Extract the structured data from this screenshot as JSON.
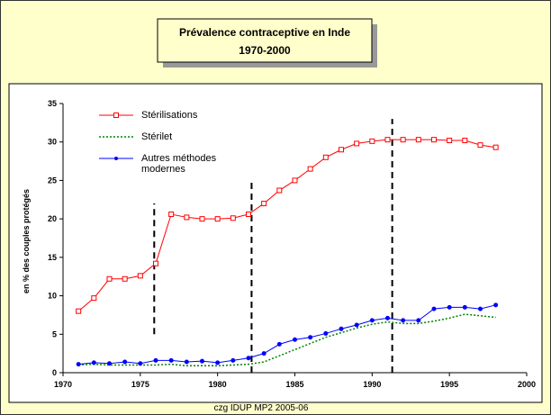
{
  "chart_data": {
    "type": "line",
    "title": "Prévalence contraceptive en Inde",
    "subtitle": "1970-2000",
    "y_label": "en % des couples protégés",
    "footer": "czg IDUP MP2 2005-06",
    "x": [
      1971,
      1972,
      1973,
      1974,
      1975,
      1976,
      1977,
      1978,
      1979,
      1980,
      1981,
      1982,
      1983,
      1984,
      1985,
      1986,
      1987,
      1988,
      1989,
      1990,
      1991,
      1992,
      1993,
      1994,
      1995,
      1996,
      1997,
      1998
    ],
    "series": [
      {
        "name": "Stérilisations",
        "color": "#ff0000",
        "style": "square",
        "values": [
          8.0,
          9.7,
          12.2,
          12.2,
          12.6,
          14.2,
          20.6,
          20.2,
          20.0,
          20.0,
          20.1,
          20.6,
          22.0,
          23.7,
          25.0,
          26.5,
          28.0,
          29.0,
          29.8,
          30.1,
          30.3,
          30.3,
          30.3,
          30.3,
          30.2,
          30.2,
          29.6,
          29.3
        ]
      },
      {
        "name": "Stérilet",
        "color": "#008000",
        "style": "dotted",
        "values": [
          1.0,
          1.1,
          1.0,
          1.0,
          1.0,
          1.0,
          1.1,
          0.9,
          0.9,
          0.9,
          1.0,
          1.1,
          1.4,
          2.2,
          3.0,
          3.8,
          4.6,
          5.2,
          5.8,
          6.3,
          6.6,
          6.4,
          6.4,
          6.7,
          7.1,
          7.6,
          7.4,
          7.2
        ]
      },
      {
        "name": "Autres méthodes modernes",
        "color": "#0000ff",
        "style": "dot",
        "values": [
          1.1,
          1.3,
          1.2,
          1.4,
          1.2,
          1.6,
          1.6,
          1.4,
          1.5,
          1.3,
          1.6,
          1.9,
          2.5,
          3.7,
          4.3,
          4.6,
          5.1,
          5.7,
          6.2,
          6.8,
          7.1,
          6.8,
          6.8,
          8.3,
          8.5,
          8.5,
          8.3,
          8.8
        ]
      }
    ],
    "vlines": [
      {
        "x": 1975.9,
        "y": [
          5,
          22
        ]
      },
      {
        "x": 1982.2,
        "y": [
          0,
          25
        ]
      },
      {
        "x": 1991.3,
        "y": [
          0,
          33
        ]
      }
    ],
    "xlim": [
      1970,
      2000
    ],
    "xticks": [
      1970,
      1975,
      1980,
      1985,
      1990,
      1995,
      2000
    ],
    "ylim": [
      0,
      35
    ],
    "yticks": [
      0,
      5,
      10,
      15,
      20,
      25,
      30,
      35
    ]
  }
}
